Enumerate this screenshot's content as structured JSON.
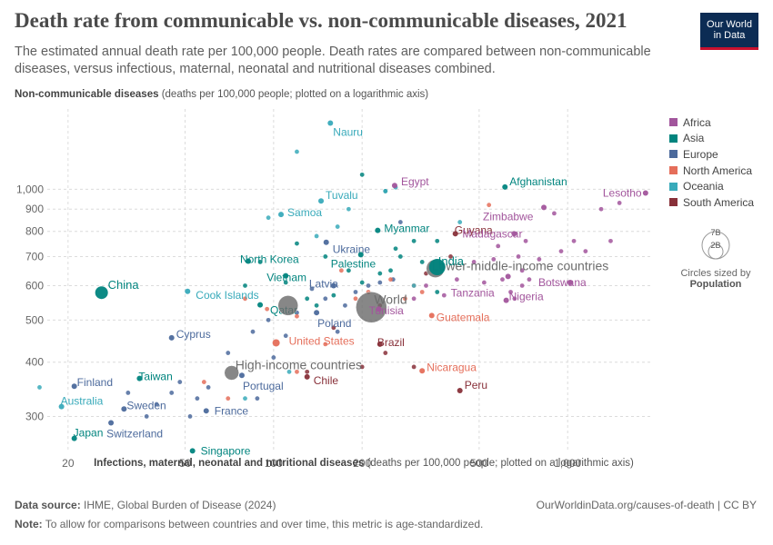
{
  "header": {
    "title": "Death rate from communicable vs. non-communicable diseases, 2021",
    "subtitle": "The estimated annual death rate per 100,000 people. Death rates are compared between non-communicable diseases, versus infectious, maternal, neonatal and nutritional diseases combined.",
    "logo_line1": "Our World",
    "logo_line2": "in Data"
  },
  "axes": {
    "y_title_bold": "Non-communicable diseases",
    "y_title_rest": " (deaths per 100,000 people; plotted on a logarithmic axis)",
    "x_title_bold": "Infections, maternal, neonatal and nutritional diseases",
    "x_title_rest": " (deaths per 100,000 people; plotted on a logarithmic axis)"
  },
  "legend": {
    "regions": [
      {
        "name": "Africa",
        "color": "#a2559c"
      },
      {
        "name": "Asia",
        "color": "#00847e"
      },
      {
        "name": "Europe",
        "color": "#4c6a9c"
      },
      {
        "name": "North America",
        "color": "#e56e5a"
      },
      {
        "name": "Oceania",
        "color": "#38aaba"
      },
      {
        "name": "South America",
        "color": "#883039"
      }
    ],
    "size_big": "7B",
    "size_small": "2B",
    "size_caption": "Circles sized by",
    "size_variable": "Population"
  },
  "footer": {
    "source_label": "Data source:",
    "source_text": " IHME, Global Burden of Disease (2024)",
    "url": "OurWorldinData.org/causes-of-death | CC BY",
    "note_label": "Note:",
    "note_text": " To allow for comparisons between countries and over time, this metric is age-standardized."
  },
  "chart_data": {
    "type": "scatter",
    "x_scale": "log",
    "y_scale": "log",
    "xlim": [
      17,
      1950
    ],
    "ylim": [
      248,
      1530
    ],
    "x_ticks": [
      20,
      50,
      100,
      200,
      500,
      1000
    ],
    "x_tick_labels": [
      "20",
      "50",
      "100",
      "200",
      "500",
      "1,000"
    ],
    "y_ticks": [
      300,
      400,
      500,
      600,
      700,
      800,
      900,
      1000
    ],
    "y_tick_labels": [
      "300",
      "400",
      "500",
      "600",
      "700",
      "800",
      "900",
      "1,000"
    ],
    "grid": true,
    "legend_position": "right",
    "points": [
      {
        "label": "Nauru",
        "region": "Oceania",
        "x": 156,
        "y": 1420,
        "big": false
      },
      {
        "label": "Egypt",
        "region": "Africa",
        "x": 258,
        "y": 1020,
        "big": false
      },
      {
        "label": "Afghanistan",
        "region": "Asia",
        "x": 612,
        "y": 1012,
        "big": false
      },
      {
        "label": "Lesotho",
        "region": "Africa",
        "x": 1840,
        "y": 980,
        "big": false
      },
      {
        "label": "Tuvalu",
        "region": "Oceania",
        "x": 145,
        "y": 940,
        "big": false
      },
      {
        "label": "Zimbabwe",
        "region": "Africa",
        "x": 830,
        "y": 908,
        "big": false
      },
      {
        "label": "Samoa",
        "region": "Oceania",
        "x": 106,
        "y": 875,
        "big": false
      },
      {
        "label": "Myanmar",
        "region": "Asia",
        "x": 226,
        "y": 804,
        "big": false
      },
      {
        "label": "Guyana",
        "region": "South America",
        "x": 415,
        "y": 790,
        "big": false
      },
      {
        "label": "Madagascar",
        "region": "Africa",
        "x": 658,
        "y": 790,
        "big": false
      },
      {
        "label": "Ukraine",
        "region": "Europe",
        "x": 151,
        "y": 755,
        "big": false
      },
      {
        "label": "North Korea",
        "region": "Asia",
        "x": 82,
        "y": 683,
        "big": false
      },
      {
        "label": "Palestine",
        "region": "Asia",
        "x": 198,
        "y": 707,
        "big": false
      },
      {
        "label": "Lower-middle-income countries",
        "region": "Income",
        "x": 355,
        "y": 657,
        "big": true,
        "size": 10
      },
      {
        "label": "India",
        "region": "Asia",
        "x": 360,
        "y": 662,
        "big": false,
        "size": 9
      },
      {
        "label": "Vietnam",
        "region": "Asia",
        "x": 110,
        "y": 632,
        "big": false
      },
      {
        "label": "Tanzania",
        "region": "Africa",
        "x": 627,
        "y": 630,
        "big": false
      },
      {
        "label": "Botswana",
        "region": "Africa",
        "x": 1020,
        "y": 610,
        "big": false
      },
      {
        "label": "China",
        "region": "Asia",
        "x": 26,
        "y": 578,
        "big": false,
        "size": 7
      },
      {
        "label": "Cook Islands",
        "region": "Oceania",
        "x": 51,
        "y": 582,
        "big": false
      },
      {
        "label": "Latvia",
        "region": "Europe",
        "x": 160,
        "y": 600,
        "big": false
      },
      {
        "label": "World",
        "region": "Income",
        "x": 215,
        "y": 535,
        "big": true,
        "size": 17
      },
      {
        "label": "Nigeria",
        "region": "Africa",
        "x": 618,
        "y": 555,
        "big": false
      },
      {
        "label": "Qatar",
        "region": "Asia",
        "x": 90,
        "y": 542,
        "big": false
      },
      {
        "label": "Poland",
        "region": "Europe",
        "x": 140,
        "y": 520,
        "big": false
      },
      {
        "label": "Tunisia",
        "region": "Africa",
        "x": 228,
        "y": 530,
        "big": false
      },
      {
        "label": "Guatemala",
        "region": "North America",
        "x": 345,
        "y": 512,
        "big": false
      },
      {
        "label": "High-income countries (upper)",
        "region": "Income",
        "x": 112,
        "y": 540,
        "big": true,
        "size": 11
      },
      {
        "label": "Cyprus",
        "region": "Europe",
        "x": 45,
        "y": 455,
        "big": false
      },
      {
        "label": "United States",
        "region": "North America",
        "x": 102,
        "y": 443,
        "big": false,
        "size": 4
      },
      {
        "label": "Brazil",
        "region": "South America",
        "x": 230,
        "y": 440,
        "big": false
      },
      {
        "label": "High-income countries",
        "region": "Income",
        "x": 72,
        "y": 378,
        "big": true,
        "size": 8
      },
      {
        "label": "Nicaragua",
        "region": "North America",
        "x": 320,
        "y": 382,
        "big": false
      },
      {
        "label": "Taiwan",
        "region": "Asia",
        "x": 35,
        "y": 367,
        "big": false
      },
      {
        "label": "Finland",
        "region": "Europe",
        "x": 21,
        "y": 352,
        "big": false
      },
      {
        "label": "Portugal",
        "region": "Europe",
        "x": 78,
        "y": 373,
        "big": false
      },
      {
        "label": "Chile",
        "region": "South America",
        "x": 130,
        "y": 370,
        "big": false
      },
      {
        "label": "Peru",
        "region": "South America",
        "x": 430,
        "y": 344,
        "big": false
      },
      {
        "label": "Australia",
        "region": "Oceania",
        "x": 19,
        "y": 316,
        "big": false
      },
      {
        "label": "Sweden",
        "region": "Europe",
        "x": 31,
        "y": 312,
        "big": false
      },
      {
        "label": "France",
        "region": "Europe",
        "x": 59,
        "y": 309,
        "big": false
      },
      {
        "label": "Switzerland",
        "region": "Europe",
        "x": 28,
        "y": 290,
        "big": false
      },
      {
        "label": "Japan",
        "region": "Asia",
        "x": 21,
        "y": 267,
        "big": false
      },
      {
        "label": "Singapore",
        "region": "Asia",
        "x": 53,
        "y": 250,
        "big": false
      }
    ]
  }
}
